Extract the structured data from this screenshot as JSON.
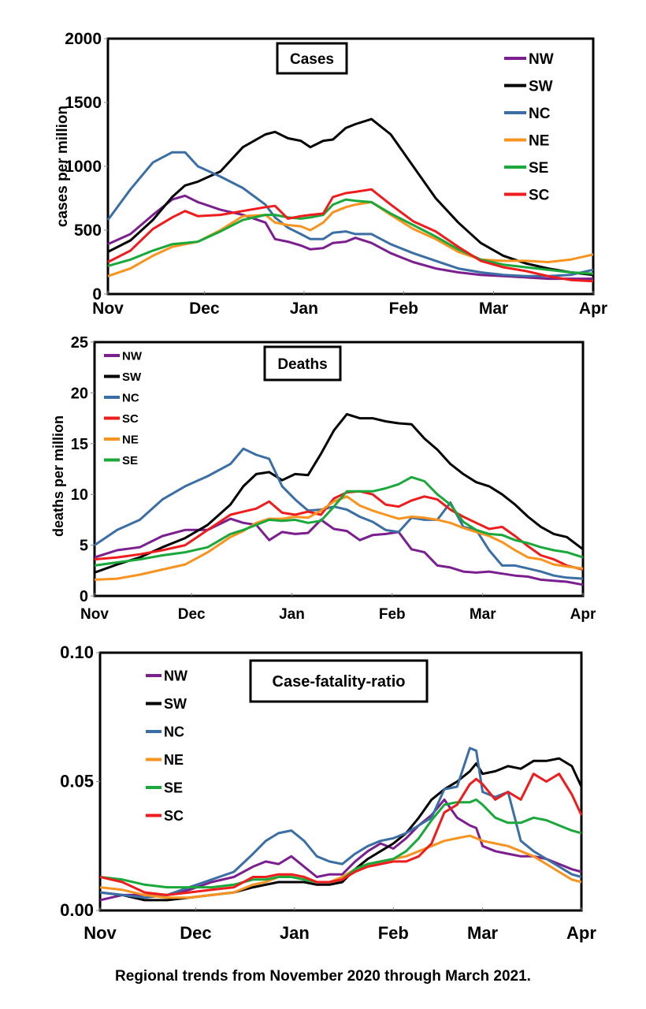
{
  "caption": "Regional trends from November 2020 through March 2021.",
  "colors": {
    "NW": "#7b1f8f",
    "SW": "#000000",
    "NC": "#3a6ea5",
    "NE": "#f7931e",
    "SE": "#1aa83a",
    "SC": "#ee1c1c"
  },
  "chart_data": [
    {
      "type": "line",
      "title": "Cases",
      "xlabel": "",
      "ylabel": "cases per million",
      "x_ticks": [
        "Nov",
        "Dec",
        "Jan",
        "Feb",
        "Mar",
        "Apr"
      ],
      "x_tick_days": [
        0,
        30,
        61,
        92,
        120,
        151
      ],
      "y_ticks": [
        "0",
        "500",
        "1000",
        "1500",
        "2000"
      ],
      "ylim": [
        0,
        2000
      ],
      "legend_order": [
        "NW",
        "SW",
        "NC",
        "NE",
        "SE",
        "SC"
      ],
      "legend_position": "top-right",
      "x_days": [
        0,
        7,
        14,
        20,
        24,
        28,
        35,
        42,
        49,
        52,
        56,
        60,
        63,
        67,
        70,
        74,
        77,
        82,
        88,
        95,
        102,
        109,
        116,
        123,
        130,
        137,
        144,
        151
      ],
      "series": [
        {
          "name": "NW",
          "values": [
            390,
            470,
            620,
            740,
            770,
            720,
            660,
            620,
            560,
            430,
            410,
            380,
            350,
            360,
            400,
            410,
            440,
            400,
            320,
            250,
            200,
            170,
            150,
            140,
            130,
            120,
            120,
            120
          ]
        },
        {
          "name": "SW",
          "values": [
            330,
            420,
            580,
            760,
            850,
            880,
            960,
            1150,
            1250,
            1270,
            1220,
            1200,
            1150,
            1200,
            1210,
            1300,
            1330,
            1370,
            1250,
            1000,
            750,
            560,
            400,
            300,
            240,
            200,
            170,
            150
          ]
        },
        {
          "name": "NC",
          "values": [
            580,
            820,
            1030,
            1110,
            1110,
            1000,
            920,
            830,
            700,
            600,
            520,
            470,
            430,
            430,
            480,
            490,
            470,
            470,
            390,
            320,
            260,
            200,
            170,
            150,
            140,
            140,
            150,
            190
          ]
        },
        {
          "name": "NE",
          "values": [
            140,
            200,
            300,
            370,
            390,
            410,
            500,
            610,
            620,
            560,
            540,
            530,
            500,
            560,
            640,
            680,
            700,
            720,
            620,
            510,
            430,
            330,
            270,
            260,
            260,
            250,
            270,
            310
          ]
        },
        {
          "name": "SE",
          "values": [
            220,
            270,
            340,
            390,
            400,
            410,
            490,
            580,
            620,
            620,
            600,
            590,
            600,
            620,
            700,
            740,
            730,
            720,
            630,
            540,
            450,
            350,
            270,
            230,
            210,
            190,
            170,
            160
          ]
        },
        {
          "name": "SC",
          "values": [
            250,
            340,
            510,
            600,
            650,
            610,
            620,
            650,
            680,
            690,
            590,
            610,
            620,
            630,
            760,
            790,
            800,
            820,
            700,
            570,
            490,
            370,
            260,
            210,
            180,
            140,
            110,
            100
          ]
        }
      ]
    },
    {
      "type": "line",
      "title": "Deaths",
      "xlabel": "",
      "ylabel": "deaths per million",
      "x_ticks": [
        "Nov",
        "Dec",
        "Jan",
        "Feb",
        "Mar",
        "Apr"
      ],
      "x_tick_days": [
        0,
        30,
        61,
        92,
        120,
        151
      ],
      "y_ticks": [
        "0",
        "5",
        "10",
        "15",
        "20",
        "25"
      ],
      "ylim": [
        0,
        25
      ],
      "legend_order": [
        "NW",
        "SW",
        "NC",
        "SC",
        "NE",
        "SE"
      ],
      "legend_position": "top-left",
      "x_days": [
        0,
        7,
        14,
        21,
        28,
        35,
        42,
        46,
        50,
        54,
        58,
        62,
        66,
        70,
        74,
        78,
        82,
        86,
        90,
        94,
        98,
        102,
        106,
        110,
        114,
        118,
        122,
        126,
        130,
        134,
        138,
        142,
        146,
        151
      ],
      "series": [
        {
          "name": "NW",
          "values": [
            3.8,
            4.5,
            4.8,
            5.9,
            6.5,
            6.5,
            7.6,
            7.2,
            7.0,
            5.5,
            6.3,
            6.1,
            6.2,
            7.5,
            6.6,
            6.4,
            5.5,
            6.0,
            6.1,
            6.3,
            4.6,
            4.3,
            3.0,
            2.8,
            2.4,
            2.3,
            2.4,
            2.2,
            2.0,
            1.9,
            1.6,
            1.5,
            1.4,
            1.1
          ]
        },
        {
          "name": "SW",
          "values": [
            2.3,
            3.1,
            3.8,
            4.8,
            5.7,
            7.0,
            9.0,
            10.8,
            12.0,
            12.2,
            11.4,
            12.0,
            11.9,
            14.0,
            16.3,
            17.9,
            17.5,
            17.5,
            17.2,
            17.0,
            16.9,
            15.5,
            14.4,
            13.0,
            12.0,
            11.2,
            10.8,
            10.0,
            9.0,
            7.8,
            6.8,
            6.1,
            5.8,
            4.6
          ]
        },
        {
          "name": "NC",
          "values": [
            5.0,
            6.5,
            7.5,
            9.5,
            10.8,
            11.8,
            13.0,
            14.5,
            13.9,
            13.5,
            10.8,
            9.5,
            8.4,
            8.5,
            8.8,
            8.5,
            7.8,
            7.3,
            6.5,
            6.3,
            7.7,
            7.5,
            7.5,
            9.2,
            6.8,
            6.5,
            4.5,
            3.0,
            3.0,
            2.7,
            2.4,
            2.0,
            1.8,
            1.7
          ]
        },
        {
          "name": "SC",
          "values": [
            3.6,
            3.8,
            4.1,
            4.5,
            5.0,
            6.5,
            8.0,
            8.3,
            8.6,
            9.3,
            8.2,
            8.0,
            8.3,
            8.0,
            9.6,
            10.2,
            10.3,
            10.0,
            9.0,
            8.8,
            9.4,
            9.8,
            9.5,
            8.5,
            7.8,
            7.2,
            6.6,
            6.8,
            5.9,
            4.9,
            4.0,
            3.6,
            3.0,
            2.6
          ]
        },
        {
          "name": "NE",
          "values": [
            1.6,
            1.7,
            2.1,
            2.6,
            3.1,
            4.3,
            5.8,
            6.4,
            7.2,
            7.6,
            7.6,
            7.8,
            7.7,
            8.4,
            9.3,
            9.8,
            8.9,
            8.4,
            8.0,
            7.6,
            7.8,
            7.7,
            7.5,
            7.2,
            6.7,
            6.3,
            5.9,
            5.3,
            4.5,
            3.8,
            3.6,
            3.1,
            2.9,
            2.7
          ]
        },
        {
          "name": "SE",
          "values": [
            3.0,
            3.3,
            3.6,
            4.0,
            4.3,
            4.8,
            6.1,
            6.5,
            7.0,
            7.5,
            7.4,
            7.5,
            7.2,
            7.4,
            8.8,
            10.3,
            10.3,
            10.3,
            10.6,
            11.0,
            11.7,
            11.3,
            10.0,
            9.0,
            7.3,
            6.5,
            6.1,
            6.0,
            5.5,
            5.2,
            4.8,
            4.5,
            4.3,
            3.8
          ]
        }
      ]
    },
    {
      "type": "line",
      "title": "Case-fatality-ratio",
      "xlabel": "",
      "ylabel": "",
      "x_ticks": [
        "Nov",
        "Dec",
        "Jan",
        "Feb",
        "Mar",
        "Apr"
      ],
      "x_tick_days": [
        0,
        30,
        61,
        92,
        120,
        151
      ],
      "y_ticks": [
        "0.00",
        "0.05",
        "0.10"
      ],
      "ylim": [
        0,
        0.1
      ],
      "legend_order": [
        "NW",
        "SW",
        "NC",
        "NE",
        "SE",
        "SC"
      ],
      "legend_position": "top-left",
      "x_days": [
        0,
        7,
        14,
        21,
        28,
        35,
        42,
        48,
        52,
        56,
        60,
        64,
        68,
        72,
        76,
        80,
        84,
        88,
        92,
        96,
        100,
        104,
        108,
        112,
        116,
        118,
        120,
        124,
        128,
        132,
        136,
        140,
        144,
        148,
        151
      ],
      "series": [
        {
          "name": "NW",
          "values": [
            0.004,
            0.006,
            0.006,
            0.006,
            0.008,
            0.011,
            0.013,
            0.017,
            0.019,
            0.018,
            0.021,
            0.017,
            0.013,
            0.014,
            0.014,
            0.019,
            0.023,
            0.026,
            0.024,
            0.028,
            0.033,
            0.037,
            0.043,
            0.036,
            0.033,
            0.032,
            0.025,
            0.023,
            0.022,
            0.021,
            0.021,
            0.02,
            0.018,
            0.016,
            0.015
          ]
        },
        {
          "name": "SW",
          "values": [
            0.007,
            0.006,
            0.004,
            0.004,
            0.005,
            0.006,
            0.007,
            0.009,
            0.01,
            0.011,
            0.011,
            0.011,
            0.01,
            0.01,
            0.011,
            0.016,
            0.02,
            0.023,
            0.026,
            0.03,
            0.036,
            0.043,
            0.047,
            0.05,
            0.054,
            0.057,
            0.053,
            0.054,
            0.056,
            0.055,
            0.058,
            0.058,
            0.059,
            0.056,
            0.048
          ]
        },
        {
          "name": "NC",
          "values": [
            0.007,
            0.006,
            0.005,
            0.006,
            0.009,
            0.012,
            0.015,
            0.022,
            0.027,
            0.03,
            0.031,
            0.027,
            0.021,
            0.019,
            0.018,
            0.022,
            0.025,
            0.027,
            0.028,
            0.03,
            0.033,
            0.036,
            0.047,
            0.048,
            0.063,
            0.062,
            0.046,
            0.044,
            0.046,
            0.027,
            0.023,
            0.02,
            0.017,
            0.014,
            0.013
          ]
        },
        {
          "name": "NE",
          "values": [
            0.009,
            0.008,
            0.006,
            0.005,
            0.005,
            0.006,
            0.007,
            0.01,
            0.011,
            0.013,
            0.014,
            0.013,
            0.011,
            0.011,
            0.013,
            0.016,
            0.018,
            0.019,
            0.02,
            0.021,
            0.023,
            0.025,
            0.027,
            0.028,
            0.029,
            0.028,
            0.027,
            0.026,
            0.025,
            0.023,
            0.021,
            0.018,
            0.015,
            0.012,
            0.011
          ]
        },
        {
          "name": "SE",
          "values": [
            0.013,
            0.012,
            0.01,
            0.009,
            0.009,
            0.009,
            0.01,
            0.012,
            0.012,
            0.013,
            0.013,
            0.012,
            0.011,
            0.011,
            0.012,
            0.016,
            0.018,
            0.019,
            0.02,
            0.023,
            0.028,
            0.035,
            0.041,
            0.042,
            0.042,
            0.043,
            0.041,
            0.036,
            0.034,
            0.034,
            0.036,
            0.035,
            0.033,
            0.031,
            0.03
          ]
        },
        {
          "name": "SC",
          "values": [
            0.013,
            0.011,
            0.007,
            0.006,
            0.007,
            0.008,
            0.009,
            0.013,
            0.013,
            0.014,
            0.014,
            0.013,
            0.011,
            0.011,
            0.012,
            0.015,
            0.017,
            0.018,
            0.019,
            0.019,
            0.021,
            0.026,
            0.038,
            0.041,
            0.049,
            0.051,
            0.049,
            0.043,
            0.046,
            0.043,
            0.053,
            0.05,
            0.053,
            0.045,
            0.037
          ]
        }
      ]
    }
  ]
}
